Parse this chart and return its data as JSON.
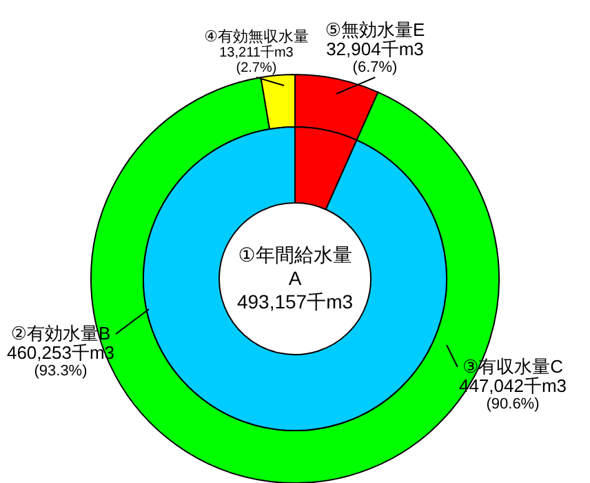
{
  "chart_data": [
    {
      "type": "donut",
      "title": "①年間給水量",
      "subtitle": "A",
      "annotations": [
        "493,157千m3"
      ],
      "categories": [
        "⑤無効水量E",
        "②有効水量B"
      ],
      "values": [
        32904,
        460253
      ],
      "value_labels": [
        "32,904千m3 (6.7%)",
        "460,253千m3 (93.3%)"
      ],
      "colors": [
        "#ff0000",
        "#00ccff"
      ]
    },
    {
      "type": "donut",
      "categories": [
        null,
        "③有収水量C",
        "④有効無収水量"
      ],
      "values": [
        32904,
        447042,
        13211
      ],
      "value_labels": [
        null,
        "447,042千m3 (90.6%)",
        "13,211千m3 (2.7%)"
      ],
      "colors": [
        "#ff0000",
        "#00ff00",
        "#ffff00"
      ]
    }
  ]
}
